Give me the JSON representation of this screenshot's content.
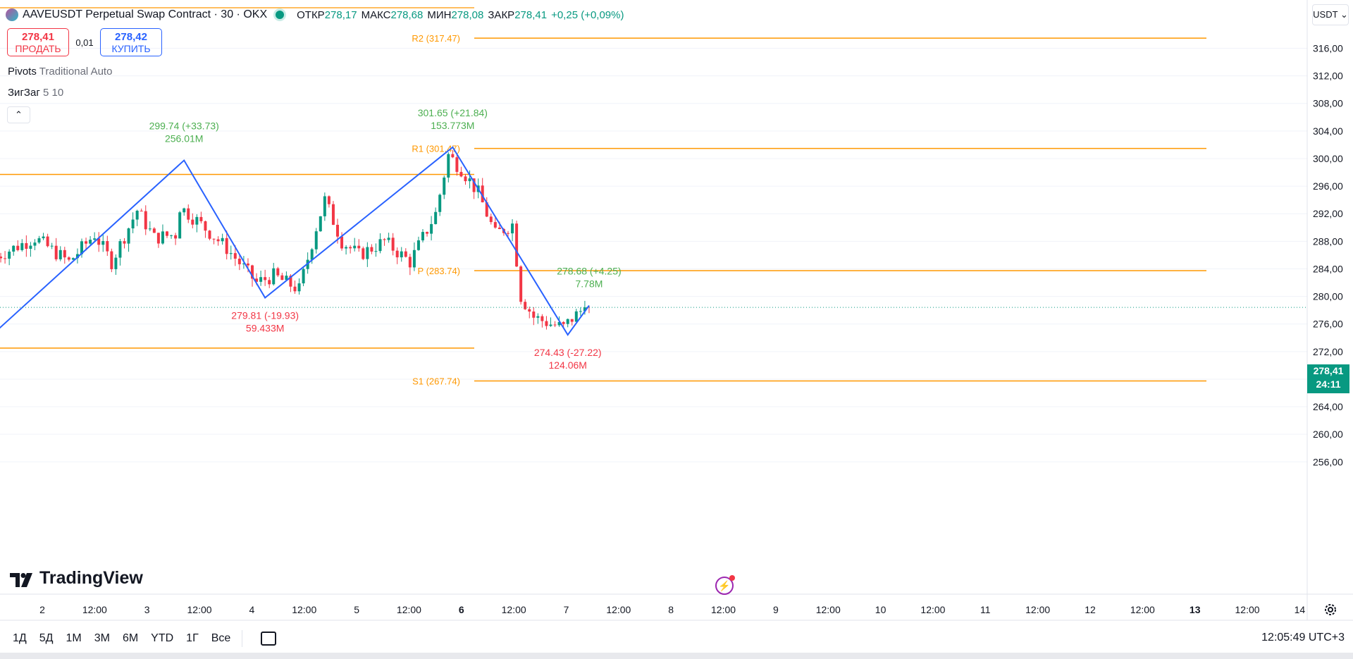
{
  "header": {
    "symbol": "AAVEUSDT Perpetual Swap Contract · 30 · OKX",
    "open_label": "ОТКР",
    "open": "278,17",
    "high_label": "МАКС",
    "high": "278,68",
    "low_label": "МИН",
    "low": "278,08",
    "close_label": "ЗАКР",
    "close": "278,41",
    "change": "+0,25 (+0,09%)"
  },
  "trade": {
    "sell_price": "278,41",
    "sell_label": "ПРОДАТЬ",
    "spread": "0,01",
    "buy_price": "278,42",
    "buy_label": "КУПИТЬ"
  },
  "indicators": {
    "pivots_name": "Pivots",
    "pivots_params": "Traditional Auto",
    "zigzag_name": "ЗигЗаг",
    "zigzag_params": "5 10"
  },
  "currency": "USDT",
  "current_price": "278,41",
  "countdown": "24:11",
  "brand": "TradingView",
  "timeframes": [
    "1Д",
    "5Д",
    "1М",
    "3М",
    "6М",
    "YTD",
    "1Г",
    "Все"
  ],
  "clock": "12:05:49 UTC+3",
  "colors": {
    "up": "#089981",
    "down": "#f23645",
    "pivot": "#ff9800",
    "zigzag": "#2962ff"
  },
  "chart_data": {
    "type": "candlestick",
    "y_range": [
      252,
      319
    ],
    "y_ticks": [
      "316,00",
      "312,00",
      "308,00",
      "304,00",
      "300,00",
      "296,00",
      "292,00",
      "288,00",
      "284,00",
      "280,00",
      "276,00",
      "272,00",
      "268,00",
      "264,00",
      "260,00",
      "256,00"
    ],
    "y_tick_values": [
      316,
      312,
      308,
      304,
      300,
      296,
      292,
      288,
      284,
      280,
      276,
      272,
      268,
      264,
      260,
      256
    ],
    "x_ticks": [
      {
        "label": "2",
        "bold": false
      },
      {
        "label": "12:00",
        "bold": false
      },
      {
        "label": "3",
        "bold": false
      },
      {
        "label": "12:00",
        "bold": false
      },
      {
        "label": "4",
        "bold": false
      },
      {
        "label": "12:00",
        "bold": false
      },
      {
        "label": "5",
        "bold": false
      },
      {
        "label": "12:00",
        "bold": false
      },
      {
        "label": "6",
        "bold": true
      },
      {
        "label": "12:00",
        "bold": false
      },
      {
        "label": "7",
        "bold": false
      },
      {
        "label": "12:00",
        "bold": false
      },
      {
        "label": "8",
        "bold": false
      },
      {
        "label": "12:00",
        "bold": false
      },
      {
        "label": "9",
        "bold": false
      },
      {
        "label": "12:00",
        "bold": false
      },
      {
        "label": "10",
        "bold": false
      },
      {
        "label": "12:00",
        "bold": false
      },
      {
        "label": "11",
        "bold": false
      },
      {
        "label": "12:00",
        "bold": false
      },
      {
        "label": "12",
        "bold": false
      },
      {
        "label": "12:00",
        "bold": false
      },
      {
        "label": "13",
        "bold": true
      },
      {
        "label": "12:00",
        "bold": false
      },
      {
        "label": "14",
        "bold": false
      }
    ],
    "pivot_levels": [
      {
        "label": "R2 (317.47)",
        "value": 317.47
      },
      {
        "label": "R1 (301.47)",
        "value": 301.47
      },
      {
        "label": "P (283.74)",
        "value": 283.74
      },
      {
        "label": "S1 (267.74)",
        "value": 267.74
      }
    ],
    "prev_pivot_levels": [
      297.7,
      272.5
    ],
    "zigzag": [
      {
        "t": 0,
        "price": 275.0
      },
      {
        "t": 44,
        "price": 299.74
      },
      {
        "t": 63,
        "price": 279.81
      },
      {
        "t": 107,
        "price": 301.65
      },
      {
        "t": 134,
        "price": 274.43
      },
      {
        "t": 139,
        "price": 278.68
      }
    ],
    "zigzag_labels": [
      {
        "price_text": "299.74 (+33.73)",
        "volume": "256.01M",
        "type": "high",
        "t": 44,
        "price": 299.74
      },
      {
        "price_text": "279.81 (-19.93)",
        "volume": "59.433M",
        "type": "low",
        "t": 63,
        "price": 279.81
      },
      {
        "price_text": "301.65 (+21.84)",
        "volume": "153.773M",
        "type": "high",
        "t": 107,
        "price": 301.65
      },
      {
        "price_text": "274.43 (-27.22)",
        "volume": "124.06M",
        "type": "low",
        "t": 134,
        "price": 274.43
      },
      {
        "price_text": "278.68 (+4.25)",
        "volume": "7.78M",
        "type": "high",
        "t": 139,
        "price": 278.68
      }
    ],
    "candle_count": 139,
    "last_close": 278.41
  }
}
